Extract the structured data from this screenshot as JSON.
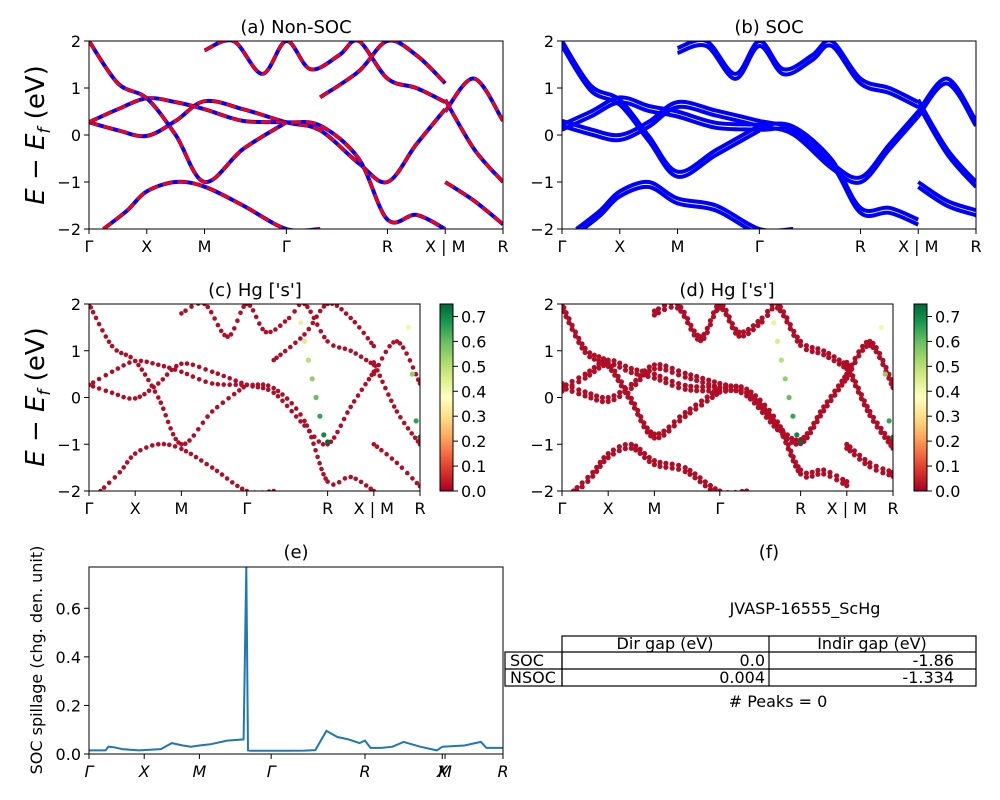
{
  "figure": {
    "panels": {
      "a": {
        "title": "(a) Non-SOC"
      },
      "b": {
        "title": "(b) SOC"
      },
      "c": {
        "title": "(c)  Hg ['s']"
      },
      "d": {
        "title": "(d) Hg ['s']"
      },
      "e": {
        "title": "(e)"
      },
      "f": {
        "title": "(f)"
      }
    },
    "ylabel_energy": "E − E",
    "ylabel_energy_sub": "f",
    "ylabel_energy_unit": " (eV)",
    "colors": {
      "nonsoc_band_outer": "#0000ff",
      "nonsoc_band_dash": "#ff0000",
      "soc_band": "#0000ff",
      "spillage_line": "#1f77b4",
      "colormap": "RdYlGn"
    }
  },
  "chart_data": [
    {
      "id": "a",
      "type": "line",
      "title": "(a) Non-SOC",
      "ylim": [
        -2,
        2
      ],
      "yticks": [
        "−2",
        "−1",
        "0",
        "1",
        "2"
      ],
      "xticks": [
        "Γ",
        "X",
        "M",
        "Γ",
        "R",
        "X | M",
        "R"
      ],
      "xtick_positions": [
        0,
        0.6,
        1.2,
        2.05,
        3.1,
        3.7,
        4.3
      ],
      "xlim": [
        0,
        4.3
      ],
      "series": [
        {
          "x": [
            0,
            0.3,
            0.6,
            0.9,
            1.2,
            1.6,
            2.05,
            2.4,
            2.8,
            3.1,
            3.4,
            3.7
          ],
          "y": [
            0.27,
            0.1,
            -0.02,
            0.3,
            0.72,
            0.55,
            0.27,
            0.1,
            -0.6,
            -1.0,
            -0.2,
            0.55
          ]
        },
        {
          "x": [
            0,
            0.3,
            0.6,
            0.9,
            1.2,
            1.6,
            2.05,
            2.4,
            2.8,
            3.1,
            3.4,
            3.7
          ],
          "y": [
            0.27,
            0.55,
            0.78,
            0.7,
            0.55,
            0.3,
            0.27,
            0.2,
            -0.5,
            -1.8,
            -1.7,
            -2.0
          ]
        },
        {
          "x": [
            0,
            0.3,
            0.6,
            0.9,
            1.2,
            1.6,
            2.05
          ],
          "y": [
            2.0,
            1.1,
            0.78,
            0.0,
            -1.0,
            -0.3,
            0.27
          ]
        },
        {
          "x": [
            0.15,
            0.4,
            0.6,
            0.9,
            1.2,
            1.6,
            2.05,
            2.4
          ],
          "y": [
            -2.0,
            -1.6,
            -1.2,
            -1.0,
            -1.1,
            -1.5,
            -2.0,
            -2.0
          ]
        },
        {
          "x": [
            1.2,
            1.5,
            1.8,
            2.05,
            2.3,
            2.6,
            2.8,
            3.1,
            3.4,
            3.7
          ],
          "y": [
            1.8,
            2.0,
            1.3,
            2.0,
            1.4,
            1.7,
            2.0,
            1.2,
            1.0,
            0.7
          ]
        },
        {
          "x": [
            2.4,
            2.8,
            3.1,
            3.4,
            3.7
          ],
          "y": [
            0.8,
            1.35,
            2.0,
            1.7,
            1.1
          ]
        },
        {
          "x": [
            3.7,
            4.0,
            4.3
          ],
          "y": [
            0.5,
            1.2,
            0.3
          ]
        },
        {
          "x": [
            3.7,
            4.0,
            4.3
          ],
          "y": [
            -1.0,
            -1.4,
            -1.9
          ]
        },
        {
          "x": [
            3.7,
            4.0,
            4.3
          ],
          "y": [
            0.75,
            -0.3,
            -1.0
          ]
        }
      ]
    },
    {
      "id": "b",
      "type": "line",
      "title": "(b) SOC",
      "ylim": [
        -2,
        2
      ],
      "yticks": [
        "−2",
        "−1",
        "0",
        "1",
        "2"
      ],
      "xticks": [
        "Γ",
        "X",
        "M",
        "Γ",
        "R",
        "X | M",
        "R"
      ],
      "xtick_positions": [
        0,
        0.6,
        1.2,
        2.05,
        3.1,
        3.7,
        4.3
      ],
      "xlim": [
        0,
        4.3
      ],
      "series": [
        {
          "x": [
            0,
            0.3,
            0.6,
            0.9,
            1.2,
            1.6,
            2.05,
            2.4,
            2.8,
            3.1,
            3.4,
            3.7
          ],
          "y": [
            0.3,
            0.12,
            0.0,
            0.28,
            0.7,
            0.52,
            0.3,
            0.12,
            -0.6,
            -0.9,
            -0.2,
            0.5
          ]
        },
        {
          "x": [
            0,
            0.3,
            0.6,
            0.9,
            1.2,
            1.6,
            2.05,
            2.4,
            2.8,
            3.1,
            3.4,
            3.7
          ],
          "y": [
            0.22,
            0.5,
            0.8,
            0.62,
            0.5,
            0.26,
            0.22,
            0.18,
            -0.52,
            -1.55,
            -1.55,
            -1.8
          ]
        },
        {
          "x": [
            0,
            0.3,
            0.6,
            0.9,
            1.2,
            1.6,
            2.05
          ],
          "y": [
            2.0,
            1.05,
            0.75,
            -0.02,
            -0.78,
            -0.32,
            0.2
          ]
        },
        {
          "x": [
            0.15,
            0.4,
            0.6,
            0.9,
            1.2,
            1.6,
            2.05,
            2.4
          ],
          "y": [
            -2.0,
            -1.6,
            -1.2,
            -1.0,
            -1.35,
            -1.5,
            -2.0,
            -2.0
          ]
        },
        {
          "x": [
            1.2,
            1.5,
            1.8,
            2.05,
            2.3,
            2.6,
            2.8,
            3.1,
            3.4,
            3.7
          ],
          "y": [
            1.85,
            2.0,
            1.3,
            2.0,
            1.4,
            1.7,
            2.0,
            1.2,
            1.0,
            0.7
          ]
        },
        {
          "x": [
            3.7,
            4.0,
            4.3
          ],
          "y": [
            0.5,
            1.2,
            0.3
          ]
        },
        {
          "x": [
            3.7,
            4.0,
            4.3
          ],
          "y": [
            -1.0,
            -1.4,
            -1.6
          ]
        },
        {
          "x": [
            3.7,
            4.0,
            4.3
          ],
          "y": [
            0.75,
            -0.3,
            -1.0
          ]
        }
      ]
    },
    {
      "id": "c",
      "type": "scatter",
      "title": "(c)  Hg ['s']",
      "ylim": [
        -2,
        2
      ],
      "yticks": [
        "−2",
        "−1",
        "0",
        "1",
        "2"
      ],
      "xticks": [
        "Γ",
        "X",
        "M",
        "Γ",
        "R",
        "X | M",
        "R"
      ],
      "xtick_positions": [
        0,
        0.6,
        1.2,
        2.05,
        3.1,
        3.7,
        4.3
      ],
      "xlim": [
        0,
        4.3
      ],
      "colorbar": {
        "ticks": [
          "0.0",
          "0.1",
          "0.2",
          "0.3",
          "0.4",
          "0.5",
          "0.6",
          "0.7"
        ],
        "range": [
          0,
          0.75
        ]
      },
      "highlight_points": [
        {
          "x": 2.75,
          "y": 1.6,
          "weight": 0.42
        },
        {
          "x": 2.8,
          "y": 1.2,
          "weight": 0.45
        },
        {
          "x": 2.85,
          "y": 0.8,
          "weight": 0.5
        },
        {
          "x": 2.9,
          "y": 0.4,
          "weight": 0.55
        },
        {
          "x": 2.95,
          "y": 0.0,
          "weight": 0.6
        },
        {
          "x": 3.0,
          "y": -0.4,
          "weight": 0.65
        },
        {
          "x": 3.05,
          "y": -0.8,
          "weight": 0.7
        },
        {
          "x": 3.1,
          "y": -0.95,
          "weight": 0.75
        },
        {
          "x": 4.15,
          "y": 1.5,
          "weight": 0.4
        },
        {
          "x": 4.2,
          "y": 0.5,
          "weight": 0.55
        },
        {
          "x": 4.25,
          "y": -0.5,
          "weight": 0.65
        },
        {
          "x": 4.3,
          "y": -0.85,
          "weight": 0.72
        }
      ]
    },
    {
      "id": "d",
      "type": "scatter",
      "title": "(d) Hg ['s']",
      "ylim": [
        -2,
        2
      ],
      "yticks": [
        "−2",
        "−1",
        "0",
        "1",
        "2"
      ],
      "xticks": [
        "Γ",
        "X",
        "M",
        "Γ",
        "R",
        "X | M",
        "R"
      ],
      "xtick_positions": [
        0,
        0.6,
        1.2,
        2.05,
        3.1,
        3.7,
        4.3
      ],
      "xlim": [
        0,
        4.3
      ],
      "colorbar": {
        "ticks": [
          "0.0",
          "0.1",
          "0.2",
          "0.3",
          "0.4",
          "0.5",
          "0.6",
          "0.7"
        ],
        "range": [
          0,
          0.75
        ]
      },
      "highlight_points": [
        {
          "x": 2.75,
          "y": 1.6,
          "weight": 0.42
        },
        {
          "x": 2.8,
          "y": 1.2,
          "weight": 0.45
        },
        {
          "x": 2.85,
          "y": 0.8,
          "weight": 0.5
        },
        {
          "x": 2.9,
          "y": 0.4,
          "weight": 0.55
        },
        {
          "x": 2.95,
          "y": 0.0,
          "weight": 0.6
        },
        {
          "x": 3.0,
          "y": -0.4,
          "weight": 0.65
        },
        {
          "x": 3.05,
          "y": -0.8,
          "weight": 0.7
        },
        {
          "x": 3.1,
          "y": -0.95,
          "weight": 0.75
        },
        {
          "x": 4.15,
          "y": 1.5,
          "weight": 0.4
        },
        {
          "x": 4.2,
          "y": 0.5,
          "weight": 0.55
        },
        {
          "x": 4.25,
          "y": -0.5,
          "weight": 0.65
        },
        {
          "x": 4.3,
          "y": -0.85,
          "weight": 0.72
        }
      ]
    },
    {
      "id": "e",
      "type": "line",
      "title": "(e)",
      "ylabel": "SOC spillage (chg. den. unit)",
      "ylim": [
        0,
        0.77
      ],
      "yticks": [
        "0.0",
        "0.2",
        "0.4",
        "0.6"
      ],
      "ytick_values": [
        0,
        0.2,
        0.4,
        0.6
      ],
      "xticks": [
        "Γ",
        "X",
        "M",
        "Γ",
        "R",
        "X",
        "M",
        "R"
      ],
      "xtick_positions": [
        0,
        1,
        2,
        3.3,
        5,
        6.4,
        6.45,
        7.5
      ],
      "xlim": [
        0,
        7.5
      ],
      "series": [
        {
          "x": [
            0,
            0.3,
            0.35,
            0.45,
            0.6,
            0.9,
            1.3,
            1.5,
            1.7,
            1.85,
            2.0,
            2.2,
            2.5,
            2.8,
            2.85,
            2.88,
            2.92,
            3.2,
            3.6,
            3.9,
            4.1,
            4.3,
            4.5,
            4.7,
            4.9,
            5.0,
            5.1,
            5.3,
            5.5,
            5.7,
            6.0,
            6.3,
            6.4,
            6.8,
            7.1,
            7.2,
            7.3,
            7.5
          ],
          "y": [
            0.015,
            0.015,
            0.03,
            0.028,
            0.02,
            0.015,
            0.02,
            0.045,
            0.035,
            0.03,
            0.035,
            0.04,
            0.055,
            0.06,
            0.77,
            0.015,
            0.013,
            0.013,
            0.013,
            0.014,
            0.016,
            0.095,
            0.07,
            0.06,
            0.045,
            0.055,
            0.025,
            0.025,
            0.03,
            0.05,
            0.03,
            0.015,
            0.03,
            0.035,
            0.05,
            0.025,
            0.025,
            0.025
          ]
        }
      ]
    },
    {
      "id": "f",
      "type": "table",
      "title": "(f)",
      "caption": "JVASP-16555_ScHg",
      "columns": [
        "Dir gap (eV)",
        "Indir gap (eV)"
      ],
      "rows": [
        {
          "label": "SOC",
          "values": [
            "0.0",
            "-1.86"
          ]
        },
        {
          "label": "NSOC",
          "values": [
            "0.004",
            "-1.334"
          ]
        }
      ],
      "footer": "# Peaks = 0"
    }
  ]
}
